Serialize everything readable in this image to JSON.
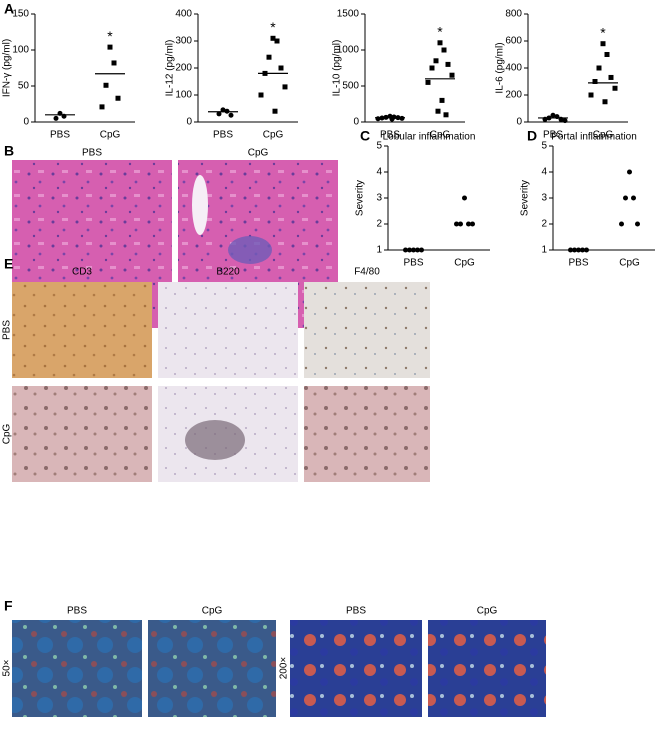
{
  "chart_data": [
    {
      "type": "dotplot",
      "ylabel": "IFN-γ (pg/ml)",
      "categories": [
        "PBS",
        "CpG"
      ],
      "markers": [
        "circle",
        "square"
      ],
      "points": [
        [
          12,
          8,
          5
        ],
        [
          104,
          82,
          51,
          33,
          21
        ]
      ],
      "means": [
        10,
        67
      ],
      "ylim": [
        0,
        150
      ],
      "yticks": [
        0,
        50,
        100,
        150
      ],
      "annotations": [
        {
          "category": "CpG",
          "text": "*"
        }
      ],
      "color": "#000000"
    },
    {
      "type": "dotplot",
      "ylabel": "IL-12 (pg/ml)",
      "categories": [
        "PBS",
        "CpG"
      ],
      "markers": [
        "circle",
        "square"
      ],
      "points": [
        [
          45,
          40,
          30,
          25
        ],
        [
          310,
          300,
          240,
          200,
          180,
          130,
          100,
          40
        ]
      ],
      "means": [
        38,
        180
      ],
      "ylim": [
        0,
        400
      ],
      "yticks": [
        0,
        100,
        200,
        300,
        400
      ],
      "annotations": [
        {
          "category": "CpG",
          "text": "*"
        }
      ],
      "color": "#000000"
    },
    {
      "type": "dotplot",
      "ylabel": "IL-10 (pg/ml)",
      "categories": [
        "PBS",
        "CpG"
      ],
      "markers": [
        "circle",
        "square"
      ],
      "points": [
        [
          80,
          70,
          65,
          60,
          55,
          50,
          45,
          40
        ],
        [
          1100,
          1000,
          850,
          800,
          750,
          650,
          550,
          300,
          150,
          100
        ]
      ],
      "means": [
        60,
        600
      ],
      "ylim": [
        0,
        1500
      ],
      "yticks": [
        0,
        500,
        1000,
        1500
      ],
      "annotations": [
        {
          "category": "CpG",
          "text": "*"
        }
      ],
      "color": "#000000"
    },
    {
      "type": "dotplot",
      "ylabel": "IL-6 (pg/ml)",
      "categories": [
        "PBS",
        "CpG"
      ],
      "markers": [
        "circle",
        "square"
      ],
      "points": [
        [
          50,
          40,
          30,
          20,
          20,
          10
        ],
        [
          580,
          500,
          400,
          330,
          300,
          250,
          200,
          150
        ]
      ],
      "means": [
        30,
        290
      ],
      "ylim": [
        0,
        800
      ],
      "yticks": [
        0,
        200,
        400,
        600,
        800
      ],
      "annotations": [
        {
          "category": "CpG",
          "text": "*"
        }
      ],
      "color": "#000000"
    },
    {
      "type": "dotplot",
      "title": "Lobular inflammation",
      "ylabel": "Severity",
      "categories": [
        "PBS",
        "CpG"
      ],
      "markers": [
        "circle",
        "circle"
      ],
      "points": [
        [
          1,
          1,
          1,
          1,
          1
        ],
        [
          3,
          2,
          2,
          2,
          2
        ]
      ],
      "ylim": [
        1,
        5
      ],
      "yticks": [
        1,
        2,
        3,
        4,
        5
      ],
      "color": "#000000"
    },
    {
      "type": "dotplot",
      "title": "Portal inflammation",
      "ylabel": "Severity",
      "categories": [
        "PBS",
        "CpG"
      ],
      "markers": [
        "circle",
        "circle"
      ],
      "points": [
        [
          1,
          1,
          1,
          1,
          1
        ],
        [
          4,
          3,
          3,
          2,
          2
        ]
      ],
      "ylim": [
        1,
        5
      ],
      "yticks": [
        1,
        2,
        3,
        4,
        5
      ],
      "color": "#000000"
    }
  ],
  "panels": {
    "letters": [
      "A",
      "B",
      "C",
      "D",
      "E",
      "F"
    ],
    "b_labels": [
      "PBS",
      "CpG"
    ],
    "e_columns": [
      "CD3",
      "B220",
      "F4/80"
    ],
    "e_rows": [
      "PBS",
      "CpG"
    ],
    "f_labels": [
      "PBS",
      "CpG",
      "PBS",
      "CpG"
    ],
    "f_mags": [
      "50×",
      "200×"
    ]
  }
}
